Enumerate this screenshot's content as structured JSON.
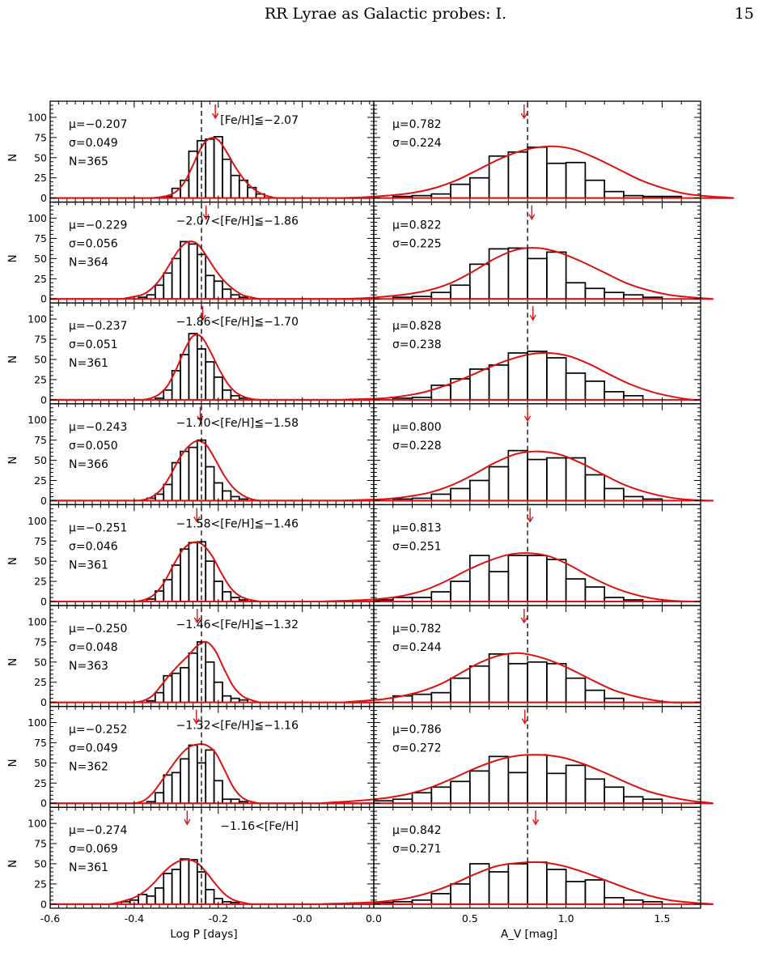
{
  "header": {
    "title": "RR Lyrae as Galactic probes: I.",
    "page": "15"
  },
  "colors": {
    "fit": "#dd1111",
    "hist": "#000000",
    "arrow": "#dd1111"
  },
  "chart_data": [
    {
      "type": "bar",
      "column": "left",
      "x": [
        -0.58,
        -0.56,
        -0.54,
        -0.52,
        -0.5,
        -0.48,
        -0.46,
        -0.44,
        -0.42,
        -0.4,
        -0.38,
        -0.36,
        -0.34,
        -0.32,
        -0.3,
        -0.28,
        -0.26,
        -0.24,
        -0.22,
        -0.2,
        -0.18,
        -0.16,
        -0.14,
        -0.12,
        -0.1,
        -0.08,
        -0.06,
        -0.04,
        -0.02,
        0.0,
        0.02,
        0.04,
        0.06,
        0.08,
        0.1
      ],
      "xlabel": "Log P [days]",
      "xlim": [
        -0.6,
        0.17
      ],
      "xticks": [
        "-0.6",
        "-0.4",
        "-0.2",
        "-0.0"
      ],
      "xtick_values": [
        -0.6,
        -0.4,
        -0.2,
        0.0
      ],
      "ylabel": "N",
      "ylim": [
        -5,
        120
      ],
      "yticks": [
        "0",
        "25",
        "50",
        "75",
        "100"
      ],
      "ytick_values": [
        0,
        25,
        50,
        75,
        100
      ],
      "reference_line_x": -0.24,
      "panels": [
        {
          "stats": [
            "μ=−0.207",
            "σ=0.049",
            "N=365"
          ],
          "label": "[Fe/H]≦−2.07",
          "arrow_x": -0.207,
          "bins_start": -0.33,
          "bin_width": 0.02,
          "values": [
            2,
            12,
            22,
            58,
            71,
            73,
            76,
            48,
            28,
            22,
            13,
            5
          ],
          "curve": [
            0,
            1,
            3,
            8,
            20,
            41,
            63,
            74,
            72,
            57,
            39,
            24,
            13,
            6,
            2,
            0
          ]
        },
        {
          "stats": [
            "μ=−0.229",
            "σ=0.056",
            "N=364"
          ],
          "label": "−2.07<[Fe/H]≦−1.86",
          "arrow_x": -0.229,
          "bins_start": -0.39,
          "bin_width": 0.02,
          "values": [
            2,
            5,
            17,
            32,
            50,
            71,
            68,
            55,
            29,
            22,
            12,
            5,
            2
          ],
          "curve": [
            1,
            3,
            6,
            14,
            27,
            45,
            62,
            71,
            68,
            53,
            36,
            22,
            12,
            5,
            2,
            0
          ]
        },
        {
          "stats": [
            "μ=−0.237",
            "σ=0.051",
            "N=361"
          ],
          "label": "−1.86<[Fe/H]≦−1.70",
          "arrow_x": -0.237,
          "bins_start": -0.35,
          "bin_width": 0.02,
          "values": [
            2,
            12,
            36,
            56,
            82,
            63,
            47,
            28,
            12,
            5,
            2
          ],
          "curve": [
            0,
            2,
            7,
            18,
            38,
            62,
            79,
            78,
            61,
            40,
            22,
            10,
            4,
            1,
            0
          ]
        },
        {
          "stats": [
            "μ=−0.243",
            "σ=0.050",
            "N=366"
          ],
          "label": "−1.70<[Fe/H]≦−1.58",
          "arrow_x": -0.243,
          "bins_start": -0.37,
          "bin_width": 0.02,
          "values": [
            3,
            8,
            20,
            47,
            61,
            66,
            75,
            42,
            22,
            12,
            5,
            2
          ],
          "curve": [
            0,
            1,
            5,
            14,
            31,
            52,
            67,
            74,
            69,
            51,
            31,
            16,
            7,
            2,
            0
          ]
        },
        {
          "stats": [
            "μ=−0.251",
            "σ=0.046",
            "N=361"
          ],
          "label": "−1.58<[Fe/H]≦−1.46",
          "arrow_x": -0.251,
          "bins_start": -0.37,
          "bin_width": 0.02,
          "values": [
            3,
            13,
            27,
            45,
            65,
            73,
            74,
            50,
            25,
            12,
            5,
            2
          ],
          "curve": [
            0,
            2,
            8,
            22,
            44,
            64,
            73,
            71,
            57,
            35,
            16,
            6,
            2,
            0
          ]
        },
        {
          "stats": [
            "μ=−0.250",
            "σ=0.048",
            "N=363"
          ],
          "label": "−1.46<[Fe/H]≦−1.32",
          "arrow_x": -0.25,
          "bins_start": -0.37,
          "bin_width": 0.02,
          "values": [
            2,
            12,
            33,
            36,
            43,
            61,
            75,
            50,
            25,
            8,
            5,
            3
          ],
          "curve": [
            0,
            2,
            8,
            21,
            35,
            47,
            58,
            70,
            75,
            64,
            41,
            20,
            8,
            3,
            0
          ]
        },
        {
          "stats": [
            "μ=−0.252",
            "σ=0.049",
            "N=362"
          ],
          "label": "−1.32<[Fe/H]≦−1.16",
          "arrow_x": -0.252,
          "bins_start": -0.37,
          "bin_width": 0.02,
          "values": [
            2,
            13,
            35,
            38,
            55,
            72,
            50,
            66,
            28,
            5,
            5,
            2
          ],
          "curve": [
            0,
            3,
            12,
            27,
            43,
            58,
            69,
            73,
            72,
            63,
            42,
            20,
            7,
            2,
            0
          ]
        },
        {
          "stats": [
            "μ=−0.274",
            "σ=0.069",
            "N=361"
          ],
          "label": "−1.16<[Fe/H]",
          "arrow_x": -0.274,
          "bins_start": -0.43,
          "bin_width": 0.02,
          "values": [
            3,
            5,
            12,
            10,
            20,
            38,
            43,
            56,
            55,
            40,
            18,
            7,
            3,
            2
          ],
          "curve": [
            0,
            2,
            5,
            9,
            16,
            26,
            38,
            48,
            54,
            55,
            50,
            38,
            24,
            12,
            5,
            2,
            0
          ]
        }
      ]
    },
    {
      "type": "bar",
      "column": "right",
      "xlabel": "A_V [mag]",
      "xlim": [
        0.0,
        1.7
      ],
      "xticks": [
        "0.0",
        "0.5",
        "1.0",
        "1.5"
      ],
      "xtick_values": [
        0.0,
        0.5,
        1.0,
        1.5
      ],
      "ylim": [
        -5,
        120
      ],
      "reference_line_x": 0.8,
      "panels": [
        {
          "stats": [
            "μ=0.782",
            "σ=0.224"
          ],
          "arrow_x": 0.782,
          "bins_start": 0.1,
          "bin_width": 0.1,
          "values": [
            2,
            3,
            5,
            17,
            25,
            52,
            57,
            63,
            43,
            44,
            22,
            8,
            3,
            2,
            2
          ],
          "curve": [
            1,
            3,
            6,
            12,
            22,
            36,
            50,
            60,
            64,
            61,
            50,
            36,
            22,
            12,
            5,
            2
          ]
        },
        {
          "stats": [
            "μ=0.822",
            "σ=0.225"
          ],
          "arrow_x": 0.822,
          "bins_start": 0.1,
          "bin_width": 0.1,
          "values": [
            2,
            3,
            8,
            17,
            43,
            62,
            63,
            50,
            58,
            20,
            13,
            8,
            5,
            2
          ],
          "curve": [
            1,
            3,
            6,
            11,
            20,
            34,
            50,
            61,
            63,
            57,
            46,
            33,
            20,
            11,
            5,
            2
          ]
        },
        {
          "stats": [
            "μ=0.828",
            "σ=0.238"
          ],
          "arrow_x": 0.828,
          "bins_start": 0.1,
          "bin_width": 0.1,
          "values": [
            2,
            3,
            18,
            26,
            38,
            43,
            58,
            60,
            52,
            33,
            23,
            10,
            5
          ],
          "curve": [
            1,
            2,
            5,
            10,
            18,
            28,
            39,
            49,
            56,
            58,
            54,
            44,
            31,
            19,
            10,
            4
          ]
        },
        {
          "stats": [
            "μ=0.800",
            "σ=0.228"
          ],
          "arrow_x": 0.8,
          "bins_start": 0.1,
          "bin_width": 0.1,
          "values": [
            2,
            3,
            8,
            15,
            25,
            42,
            62,
            51,
            53,
            53,
            32,
            15,
            5,
            2
          ],
          "curve": [
            1,
            2,
            5,
            10,
            19,
            32,
            47,
            58,
            61,
            57,
            46,
            32,
            19,
            10,
            4,
            1
          ]
        },
        {
          "stats": [
            "μ=0.813",
            "σ=0.251"
          ],
          "arrow_x": 0.813,
          "bins_start": 0.0,
          "bin_width": 0.1,
          "values": [
            2,
            5,
            5,
            12,
            25,
            57,
            37,
            57,
            57,
            52,
            28,
            18,
            5,
            2
          ],
          "curve": [
            1,
            2,
            4,
            8,
            15,
            26,
            39,
            50,
            58,
            60,
            56,
            45,
            31,
            19,
            10,
            4,
            1
          ]
        },
        {
          "stats": [
            "μ=0.782",
            "σ=0.244"
          ],
          "arrow_x": 0.782,
          "bins_start": 0.1,
          "bin_width": 0.1,
          "values": [
            8,
            10,
            12,
            30,
            45,
            60,
            48,
            50,
            48,
            30,
            15,
            5
          ],
          "curve": [
            2,
            4,
            8,
            14,
            23,
            36,
            49,
            58,
            61,
            57,
            49,
            38,
            26,
            15,
            8,
            3
          ]
        },
        {
          "stats": [
            "μ=0.786",
            "σ=0.272"
          ],
          "arrow_x": 0.786,
          "bins_start": 0.0,
          "bin_width": 0.1,
          "values": [
            3,
            5,
            13,
            20,
            27,
            40,
            58,
            38,
            60,
            37,
            47,
            30,
            20,
            8,
            5
          ],
          "curve": [
            2,
            4,
            7,
            12,
            20,
            31,
            43,
            53,
            59,
            60,
            57,
            49,
            38,
            26,
            15,
            8,
            3
          ]
        },
        {
          "stats": [
            "μ=0.842",
            "σ=0.271"
          ],
          "arrow_x": 0.842,
          "bins_start": 0.0,
          "bin_width": 0.1,
          "values": [
            2,
            3,
            5,
            13,
            25,
            50,
            40,
            50,
            52,
            43,
            28,
            30,
            8,
            5,
            3
          ],
          "curve": [
            1,
            2,
            4,
            8,
            15,
            25,
            37,
            47,
            51,
            52,
            48,
            40,
            30,
            20,
            11,
            5,
            2
          ]
        }
      ]
    }
  ]
}
